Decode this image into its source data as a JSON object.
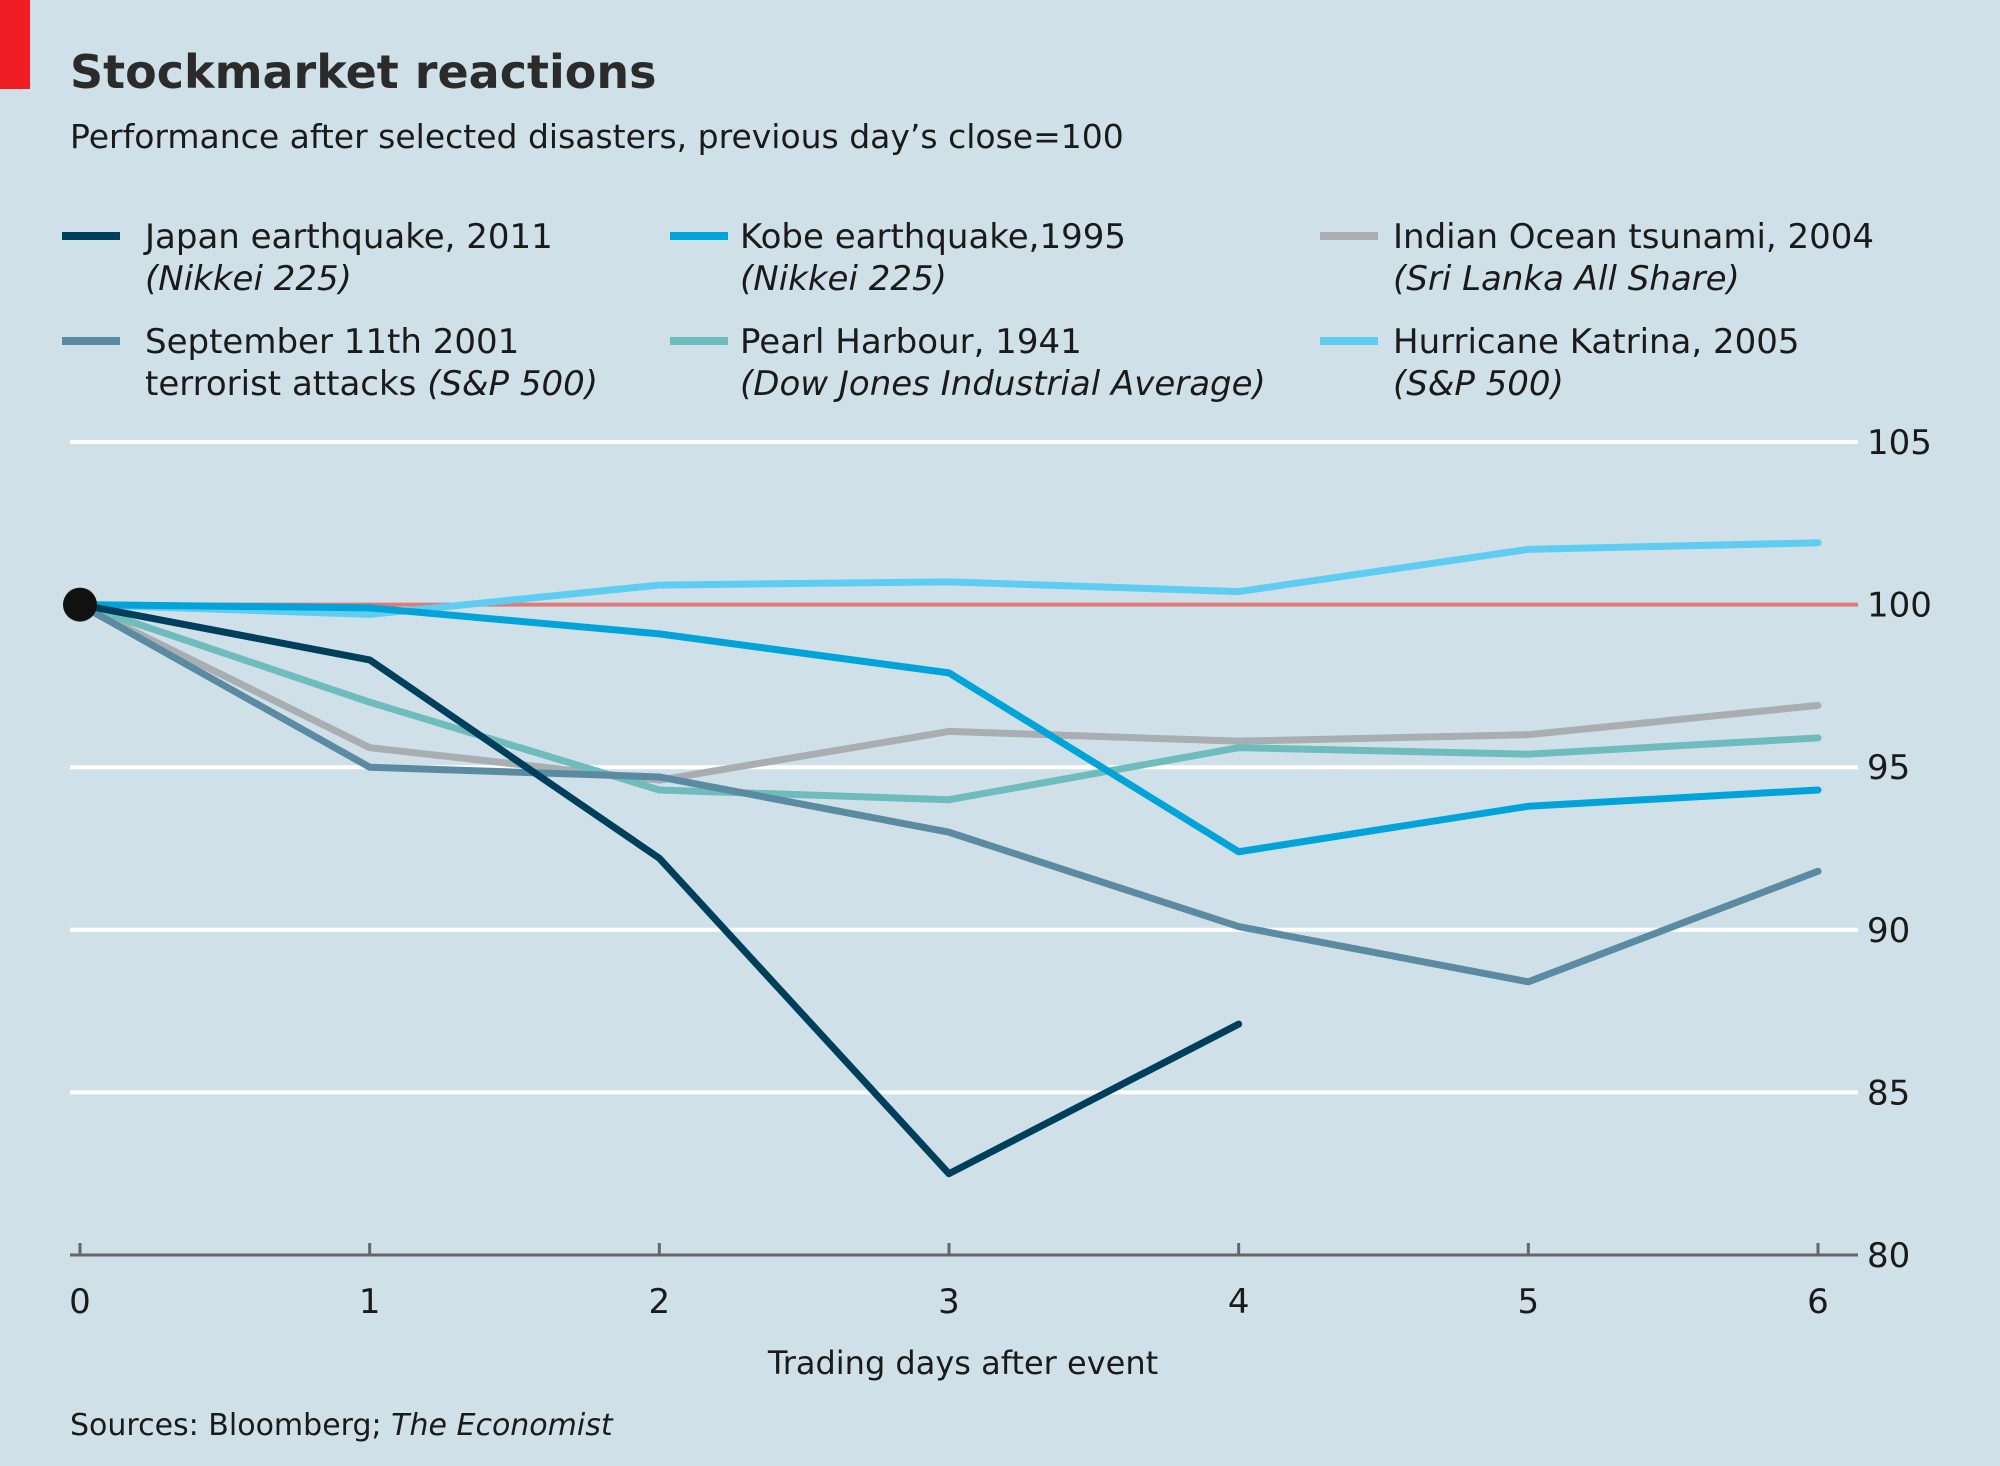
{
  "chart_data": {
    "type": "line",
    "title": "Stockmarket reactions",
    "subtitle": "Performance after selected disasters, previous day’s close=100",
    "xlabel": "Trading days after event",
    "ylabel": "",
    "x": [
      0,
      1,
      2,
      3,
      4,
      5,
      6
    ],
    "xlim": [
      0,
      6
    ],
    "ylim": [
      80,
      105
    ],
    "yticks": [
      80,
      85,
      90,
      95,
      100,
      105
    ],
    "ytick_side": "right",
    "grid": true,
    "baseline": 100,
    "legend_position": "top",
    "source_prefix": "Sources: Bloomberg; ",
    "source_italic": "The Economist",
    "series": [
      {
        "name": "Japan earthquake, 2011",
        "index": "(Nikkei 225)",
        "color": "#003f5c",
        "x": [
          0,
          1,
          2,
          3,
          4
        ],
        "values": [
          100,
          98.3,
          92.2,
          82.5,
          87.1
        ]
      },
      {
        "name": "September 11th 2001",
        "name_cont": "terrorist attacks ",
        "index": "(S&P 500)",
        "color": "#5b8aa3",
        "x": [
          0,
          1,
          2,
          3,
          4,
          5,
          6
        ],
        "values": [
          100,
          95,
          94.7,
          93,
          90.1,
          88.4,
          91.8
        ]
      },
      {
        "name": "Kobe earthquake,1995",
        "index": "(Nikkei 225)",
        "color": "#00a4d9",
        "x": [
          0,
          1,
          2,
          3,
          4,
          5,
          6
        ],
        "values": [
          100,
          99.9,
          99.1,
          97.9,
          92.4,
          93.8,
          94.3
        ]
      },
      {
        "name": "Pearl Harbour, 1941",
        "index": "(Dow Jones Industrial Average)",
        "color": "#6ebcbc",
        "x": [
          0,
          1,
          2,
          3,
          4,
          5,
          6
        ],
        "values": [
          100,
          97,
          94.3,
          94,
          95.6,
          95.4,
          95.9
        ]
      },
      {
        "name": "Indian Ocean tsunami, 2004",
        "index": "(Sri Lanka All Share)",
        "color": "#a8aeb2",
        "x": [
          0,
          1,
          2,
          3,
          4,
          5,
          6
        ],
        "values": [
          100,
          95.6,
          94.6,
          96.1,
          95.8,
          96,
          96.9
        ]
      },
      {
        "name": "Hurricane Katrina, 2005",
        "index": "(S&P 500)",
        "color": "#5fcdf2",
        "x": [
          0,
          1,
          2,
          3,
          4,
          5,
          6
        ],
        "values": [
          100,
          99.7,
          100.6,
          100.7,
          100.4,
          101.7,
          101.9
        ]
      }
    ]
  },
  "colors": {
    "background": "#d0e0e8",
    "title": "#2b2b2b",
    "baseline": "#e07a7a",
    "gridline": "#ffffff",
    "accent_tab": "#ee1c25",
    "marker": "#111111"
  }
}
